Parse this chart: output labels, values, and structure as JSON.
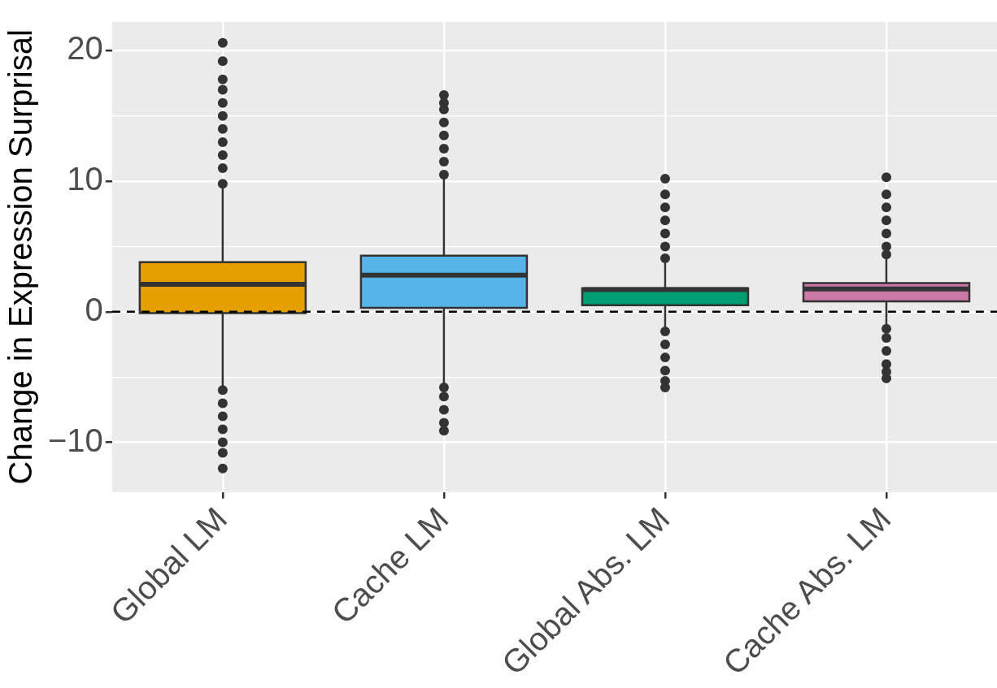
{
  "chart_data": {
    "type": "box",
    "ylabel": "Change in Expression Surprisal",
    "categories": [
      "Global LM",
      "Cache LM",
      "Global Abs. LM",
      "Cache Abs. LM"
    ],
    "colors": [
      "#e69f00",
      "#56b4e9",
      "#009e73",
      "#cc79a7"
    ],
    "boxes": [
      {
        "low": -5.9,
        "q1": -0.1,
        "median": 2.1,
        "q3": 3.8,
        "high": 9.7,
        "outliers": [
          9.8,
          11,
          12,
          13,
          14,
          15,
          16,
          17,
          17.8,
          19.2,
          20.6,
          -6,
          -7,
          -8,
          -9,
          -10,
          -10.8,
          -12
        ]
      },
      {
        "low": -5.6,
        "q1": 0.3,
        "median": 2.8,
        "q3": 4.3,
        "high": 10.3,
        "outliers": [
          10.5,
          11.5,
          12.5,
          13.5,
          14.5,
          15.5,
          16,
          16.6,
          -5.8,
          -6.5,
          -7.5,
          -8.5,
          -9.1
        ]
      },
      {
        "low": -1.4,
        "q1": 0.5,
        "median": 1.7,
        "q3": 1.8,
        "high": 4,
        "outliers": [
          4.1,
          5,
          6,
          7,
          8,
          9,
          10.2,
          -1.5,
          -2.5,
          -3.5,
          -4.5,
          -5.3,
          -5.8
        ]
      },
      {
        "low": -1.2,
        "q1": 0.8,
        "median": 1.75,
        "q3": 2.2,
        "high": 4.3,
        "outliers": [
          4.4,
          5,
          6,
          7,
          8,
          9,
          10.3,
          -1.3,
          -2,
          -3,
          -4,
          -4.6,
          -5.1
        ]
      }
    ],
    "ylim": [
      -13.8,
      22.2
    ],
    "yticks": [
      {
        "value": -10,
        "label": "−10"
      },
      {
        "value": -5,
        "label": null
      },
      0,
      {
        "value": 5,
        "label": null
      },
      10,
      {
        "value": 15,
        "label": null
      },
      20
    ],
    "grid": true,
    "ref_lines": [
      {
        "axis": "y",
        "value": 0,
        "color": "#000000",
        "line_style": "dashed"
      }
    ]
  }
}
